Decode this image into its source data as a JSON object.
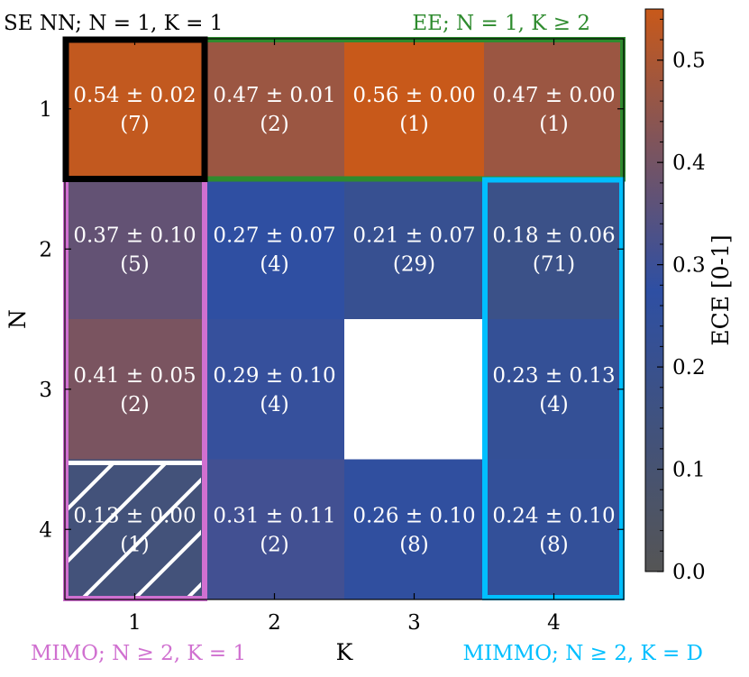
{
  "chart_data": {
    "type": "heatmap",
    "xlabel": "K",
    "ylabel": "N",
    "x_categories": [
      "1",
      "2",
      "3",
      "4"
    ],
    "y_categories": [
      "1",
      "2",
      "3",
      "4"
    ],
    "cells": [
      [
        {
          "value": 0.54,
          "label": "0.54 ± 0.02",
          "count": "(7)"
        },
        {
          "value": 0.47,
          "label": "0.47 ± 0.01",
          "count": "(2)"
        },
        {
          "value": 0.56,
          "label": "0.56 ± 0.00",
          "count": "(1)"
        },
        {
          "value": 0.47,
          "label": "0.47 ± 0.00",
          "count": "(1)"
        }
      ],
      [
        {
          "value": 0.37,
          "label": "0.37 ± 0.10",
          "count": "(5)"
        },
        {
          "value": 0.27,
          "label": "0.27 ± 0.07",
          "count": "(4)"
        },
        {
          "value": 0.21,
          "label": "0.21 ± 0.07",
          "count": "(29)"
        },
        {
          "value": 0.18,
          "label": "0.18 ± 0.06",
          "count": "(71)"
        }
      ],
      [
        {
          "value": 0.41,
          "label": "0.41 ± 0.05",
          "count": "(2)"
        },
        {
          "value": 0.29,
          "label": "0.29 ± 0.10",
          "count": "(4)"
        },
        null,
        {
          "value": 0.23,
          "label": "0.23 ± 0.13",
          "count": "(4)"
        }
      ],
      [
        {
          "value": 0.13,
          "label": "0.13 ± 0.00",
          "count": "(1)",
          "hatched": true
        },
        {
          "value": 0.31,
          "label": "0.31 ± 0.11",
          "count": "(2)"
        },
        {
          "value": 0.26,
          "label": "0.26 ± 0.10",
          "count": "(8)"
        },
        {
          "value": 0.24,
          "label": "0.24 ± 0.10",
          "count": "(8)"
        }
      ]
    ],
    "colorbar": {
      "label": "ECE [0-1]",
      "range": [
        0.0,
        0.55
      ],
      "ticks": [
        "0.0",
        "0.1",
        "0.2",
        "0.3",
        "0.4",
        "0.5"
      ],
      "colors": [
        "#555555",
        "#2e4fa3",
        "#c8591a"
      ]
    },
    "groups": [
      {
        "label": "SE NN; N = 1, K = 1",
        "color": "#000000",
        "region": "N1-K1"
      },
      {
        "label": "EE; N = 1, K ≥ 2",
        "color": "#2e8b2e",
        "region": "N1-K2..4"
      },
      {
        "label": "MIMO; N ≥ 2, K = 1",
        "color": "#d070d0",
        "region": "N2..4-K1"
      },
      {
        "label": "MIMMO; N ≥ 2, K = D",
        "color": "#00bfff",
        "region": "N2..4-K4"
      }
    ]
  }
}
